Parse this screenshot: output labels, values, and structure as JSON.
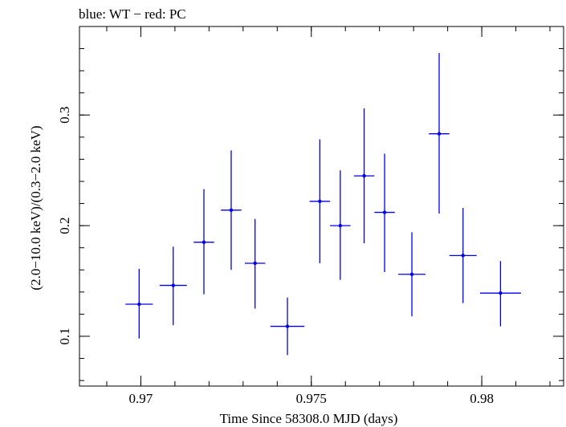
{
  "chart_data": {
    "type": "scatter",
    "title": "blue: WT − red: PC",
    "xlabel": "Time Since 58308.0 MJD (days)",
    "ylabel": "(2.0−10.0 keV)/(0.3−2.0 keV)",
    "xlim": [
      0.9682,
      0.9824
    ],
    "ylim": [
      0.055,
      0.38
    ],
    "x_ticks": [
      {
        "value": 0.97,
        "label": "0.97"
      },
      {
        "value": 0.975,
        "label": "0.975"
      },
      {
        "value": 0.98,
        "label": "0.98"
      }
    ],
    "y_ticks": [
      {
        "value": 0.1,
        "label": "0.1"
      },
      {
        "value": 0.2,
        "label": "0.2"
      },
      {
        "value": 0.3,
        "label": "0.3"
      }
    ],
    "x_minor_step": 0.001,
    "y_minor_step": 0.02,
    "grid": false,
    "series": [
      {
        "color": "#0000ee",
        "points": [
          {
            "x": 0.96995,
            "xerr": 0.0004,
            "y": 0.129,
            "ylo": 0.098,
            "yhi": 0.161
          },
          {
            "x": 0.97095,
            "xerr": 0.0004,
            "y": 0.146,
            "ylo": 0.11,
            "yhi": 0.181
          },
          {
            "x": 0.97185,
            "xerr": 0.0003,
            "y": 0.185,
            "ylo": 0.138,
            "yhi": 0.233
          },
          {
            "x": 0.97265,
            "xerr": 0.0003,
            "y": 0.214,
            "ylo": 0.16,
            "yhi": 0.268
          },
          {
            "x": 0.97335,
            "xerr": 0.0003,
            "y": 0.166,
            "ylo": 0.125,
            "yhi": 0.206
          },
          {
            "x": 0.9743,
            "xerr": 0.0005,
            "y": 0.109,
            "ylo": 0.083,
            "yhi": 0.135
          },
          {
            "x": 0.97525,
            "xerr": 0.0003,
            "y": 0.222,
            "ylo": 0.166,
            "yhi": 0.278
          },
          {
            "x": 0.97585,
            "xerr": 0.0003,
            "y": 0.2,
            "ylo": 0.151,
            "yhi": 0.25
          },
          {
            "x": 0.97655,
            "xerr": 0.0003,
            "y": 0.245,
            "ylo": 0.184,
            "yhi": 0.306
          },
          {
            "x": 0.97715,
            "xerr": 0.0003,
            "y": 0.212,
            "ylo": 0.158,
            "yhi": 0.265
          },
          {
            "x": 0.97795,
            "xerr": 0.0004,
            "y": 0.156,
            "ylo": 0.118,
            "yhi": 0.194
          },
          {
            "x": 0.97875,
            "xerr": 0.0003,
            "y": 0.283,
            "ylo": 0.211,
            "yhi": 0.356
          },
          {
            "x": 0.97945,
            "xerr": 0.0004,
            "y": 0.173,
            "ylo": 0.13,
            "yhi": 0.216
          },
          {
            "x": 0.98055,
            "xerr": 0.0006,
            "y": 0.139,
            "ylo": 0.109,
            "yhi": 0.168
          }
        ]
      }
    ]
  }
}
